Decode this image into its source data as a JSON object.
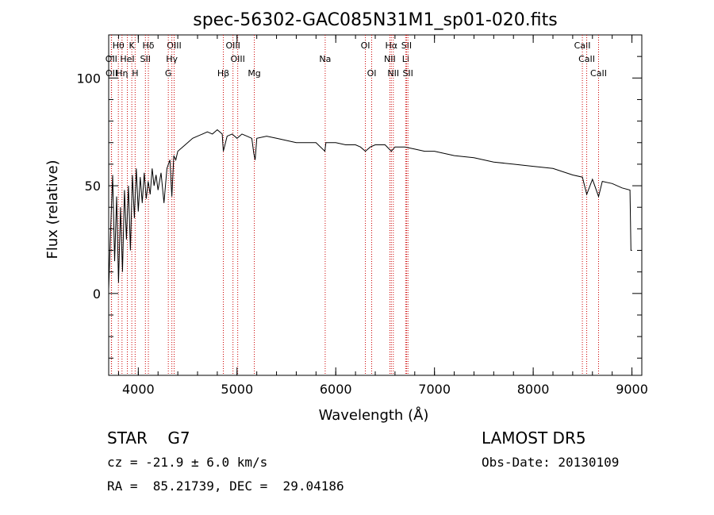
{
  "chart_data": {
    "type": "line",
    "title": "spec-56302-GAC085N31M1_sp01-020.fits",
    "xlabel": "Wavelength (Å)",
    "ylabel": "Flux (relative)",
    "xlim": [
      3700,
      9100
    ],
    "ylim": [
      -38,
      120
    ],
    "x_ticks": [
      4000,
      5000,
      6000,
      7000,
      8000,
      9000
    ],
    "y_ticks": [
      0,
      50,
      100
    ],
    "colors": {
      "spectrum": "#000000",
      "lines": "#cc0000"
    },
    "series": [
      {
        "x": [
          3700,
          3720,
          3740,
          3760,
          3780,
          3800,
          3820,
          3840,
          3860,
          3880,
          3900,
          3920,
          3940,
          3960,
          3980,
          4000,
          4020,
          4040,
          4060,
          4080,
          4100,
          4120,
          4140,
          4160,
          4180,
          4200,
          4230,
          4260,
          4290,
          4320,
          4340,
          4360,
          4380,
          4400,
          4450,
          4500,
          4550,
          4600,
          4650,
          4700,
          4750,
          4800,
          4850,
          4861,
          4900,
          4950,
          5000,
          5050,
          5100,
          5150,
          5170,
          5183,
          5200,
          5300,
          5400,
          5500,
          5600,
          5700,
          5800,
          5890,
          5900,
          6000,
          6100,
          6200,
          6250,
          6300,
          6350,
          6400,
          6500,
          6563,
          6600,
          6700,
          6800,
          6900,
          7000,
          7200,
          7400,
          7600,
          7800,
          8000,
          8200,
          8400,
          8498,
          8542,
          8600,
          8662,
          8700,
          8800,
          8900,
          8980,
          8990,
          9000
        ],
        "values": [
          2,
          30,
          55,
          15,
          45,
          5,
          40,
          10,
          48,
          25,
          50,
          20,
          55,
          35,
          58,
          38,
          54,
          42,
          56,
          44,
          52,
          46,
          58,
          50,
          55,
          48,
          56,
          42,
          58,
          62,
          45,
          64,
          62,
          66,
          68,
          70,
          72,
          73,
          74,
          75,
          74,
          76,
          74,
          66,
          73,
          74,
          72,
          74,
          73,
          72,
          65,
          62,
          72,
          73,
          72,
          71,
          70,
          70,
          70,
          66,
          70,
          70,
          69,
          69,
          68,
          66,
          68,
          69,
          69,
          66,
          68,
          68,
          67,
          66,
          66,
          64,
          63,
          61,
          60,
          59,
          58,
          55,
          54,
          46,
          53,
          45,
          52,
          51,
          49,
          48,
          20,
          20
        ]
      }
    ],
    "line_markers": [
      {
        "label": "Hθ",
        "wl": 3798,
        "row": 1
      },
      {
        "label": "K",
        "wl": 3934,
        "row": 1
      },
      {
        "label": "Hδ",
        "wl": 4102,
        "row": 1
      },
      {
        "label": "OIII",
        "wl": 4363,
        "row": 1
      },
      {
        "label": "OIII",
        "wl": 4959,
        "row": 1
      },
      {
        "label": "OI",
        "wl": 6300,
        "row": 1
      },
      {
        "label": "Hα",
        "wl": 6563,
        "row": 1
      },
      {
        "label": "SII",
        "wl": 6717,
        "row": 1
      },
      {
        "label": "CaII",
        "wl": 8498,
        "row": 1
      },
      {
        "label": "OII",
        "wl": 3727,
        "row": 2
      },
      {
        "label": "HeI",
        "wl": 3889,
        "row": 2
      },
      {
        "label": "SII",
        "wl": 4072,
        "row": 2
      },
      {
        "label": "Hγ",
        "wl": 4340,
        "row": 2
      },
      {
        "label": "OIII",
        "wl": 5007,
        "row": 2
      },
      {
        "label": "Na",
        "wl": 5893,
        "row": 2
      },
      {
        "label": "NII",
        "wl": 6548,
        "row": 2
      },
      {
        "label": "Li",
        "wl": 6708,
        "row": 2
      },
      {
        "label": "CaII",
        "wl": 8542,
        "row": 2
      },
      {
        "label": "OII",
        "wl": 3729,
        "row": 3
      },
      {
        "label": "Hη",
        "wl": 3835,
        "row": 3
      },
      {
        "label": "H",
        "wl": 3968,
        "row": 3
      },
      {
        "label": "G",
        "wl": 4304,
        "row": 3
      },
      {
        "label": "Hβ",
        "wl": 4861,
        "row": 3
      },
      {
        "label": "Mg",
        "wl": 5175,
        "row": 3
      },
      {
        "label": "OI",
        "wl": 6364,
        "row": 3
      },
      {
        "label": "NII",
        "wl": 6583,
        "row": 3
      },
      {
        "label": "SII",
        "wl": 6731,
        "row": 3
      },
      {
        "label": "CaII",
        "wl": 8662,
        "row": 3
      }
    ]
  },
  "info": {
    "classification": "STAR    G7",
    "survey": "LAMOST DR5",
    "redshift": "cz = -21.9 ± 6.0 km/s",
    "obs_date": "Obs-Date: 20130109",
    "coords": "RA =  85.21739, DEC =  29.04186"
  }
}
